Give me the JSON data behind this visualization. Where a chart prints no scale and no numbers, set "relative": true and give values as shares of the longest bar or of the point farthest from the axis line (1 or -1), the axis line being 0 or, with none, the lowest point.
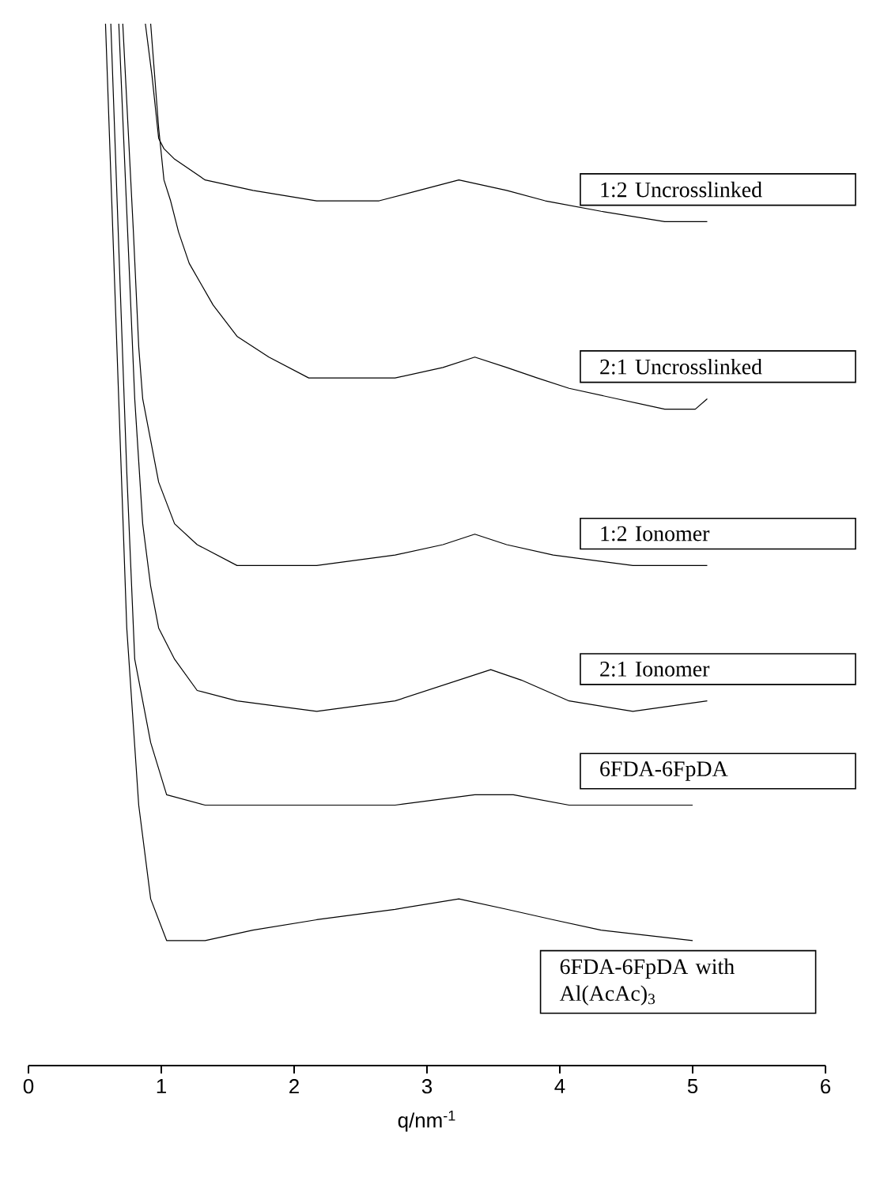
{
  "chart_data": {
    "type": "line",
    "relative": true,
    "xlabel": "q/nm$^{-1}$",
    "xlim": [
      0,
      6
    ],
    "xticks": [
      0,
      1,
      2,
      3,
      4,
      5,
      6
    ],
    "series": [
      {
        "name": "1:2 Uncrosslinked",
        "color": "#000000",
        "x": [
          0.88,
          0.93,
          0.98,
          1.02,
          1.1,
          1.33,
          1.69,
          2.17,
          2.64,
          2.94,
          3.24,
          3.6,
          3.89,
          4.31,
          4.79,
          5.11
        ],
        "values": [
          1.0,
          0.95,
          0.89,
          0.88,
          0.87,
          0.85,
          0.84,
          0.83,
          0.83,
          0.84,
          0.85,
          0.84,
          0.83,
          0.82,
          0.81,
          0.81
        ]
      },
      {
        "name": "2:1 Uncrosslinked",
        "color": "#000000",
        "x": [
          0.92,
          0.98,
          1.02,
          1.07,
          1.13,
          1.21,
          1.3,
          1.39,
          1.57,
          1.81,
          2.11,
          2.4,
          2.76,
          3.12,
          3.36,
          3.6,
          3.83,
          4.07,
          4.43,
          4.79,
          5.02,
          5.11
        ],
        "values": [
          1.0,
          0.9,
          0.85,
          0.83,
          0.8,
          0.77,
          0.75,
          0.73,
          0.7,
          0.68,
          0.66,
          0.66,
          0.66,
          0.67,
          0.68,
          0.67,
          0.66,
          0.65,
          0.64,
          0.63,
          0.63,
          0.64
        ]
      },
      {
        "name": "1:2 Ionomer",
        "color": "#000000",
        "x": [
          0.71,
          0.79,
          0.83,
          0.86,
          0.92,
          0.98,
          1.1,
          1.27,
          1.57,
          2.17,
          2.76,
          3.12,
          3.36,
          3.6,
          3.95,
          4.55,
          5.11
        ],
        "values": [
          1.0,
          0.8,
          0.69,
          0.64,
          0.6,
          0.56,
          0.52,
          0.5,
          0.48,
          0.48,
          0.49,
          0.5,
          0.51,
          0.5,
          0.49,
          0.48,
          0.48
        ]
      },
      {
        "name": "2:1 Ionomer",
        "color": "#000000",
        "x": [
          0.68,
          0.8,
          0.86,
          0.92,
          0.98,
          1.1,
          1.27,
          1.57,
          2.17,
          2.76,
          3.24,
          3.48,
          3.71,
          4.07,
          4.55,
          5.11
        ],
        "values": [
          1.0,
          0.64,
          0.52,
          0.46,
          0.42,
          0.39,
          0.36,
          0.35,
          0.34,
          0.35,
          0.37,
          0.38,
          0.37,
          0.35,
          0.34,
          0.35
        ]
      },
      {
        "name": "6FDA-6FpDA",
        "color": "#000000",
        "x": [
          0.62,
          0.74,
          0.8,
          0.92,
          1.04,
          1.33,
          2.17,
          2.76,
          3.36,
          3.65,
          4.07,
          4.55,
          5.0
        ],
        "values": [
          1.0,
          0.57,
          0.39,
          0.31,
          0.26,
          0.25,
          0.25,
          0.25,
          0.26,
          0.26,
          0.25,
          0.25,
          0.25
        ]
      },
      {
        "name": "6FDA-6FpDA with Al(AcAc)$_{3}$",
        "color": "#000000",
        "x": [
          0.58,
          0.74,
          0.83,
          0.92,
          1.04,
          1.33,
          1.69,
          2.17,
          2.76,
          3.24,
          3.6,
          3.95,
          4.31,
          5.0
        ],
        "values": [
          1.0,
          0.42,
          0.25,
          0.16,
          0.12,
          0.12,
          0.13,
          0.14,
          0.15,
          0.16,
          0.15,
          0.14,
          0.13,
          0.12
        ]
      }
    ]
  }
}
